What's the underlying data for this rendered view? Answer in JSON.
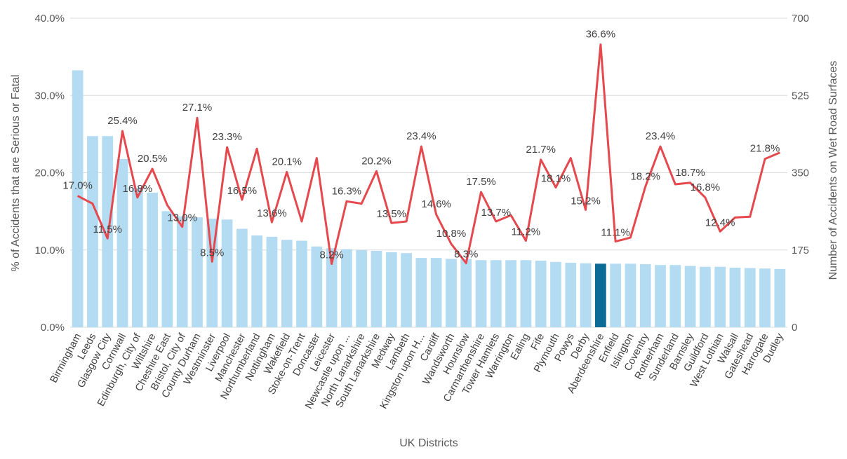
{
  "chart_data": {
    "type": "bar+line",
    "xlabel": "UK Districts",
    "ylabel_left": "% of Accidents that are Serious or Fatal",
    "ylabel_right": "Number of Accidents on Wet Road Surfaces",
    "y_left_range": [
      0,
      40
    ],
    "y_left_ticks": [
      "0.0%",
      "10.0%",
      "20.0%",
      "30.0%",
      "40.0%"
    ],
    "y_right_range": [
      0,
      700
    ],
    "y_right_ticks": [
      "0",
      "175",
      "350",
      "525",
      "700"
    ],
    "grid": true,
    "colors": {
      "bar": "#b3dcf3",
      "bar_highlight": "#0b6a96",
      "line": "#e5484d",
      "grid": "#d9d9d9"
    },
    "highlight_category": "Aberdeenshire",
    "categories": [
      "Birmingham",
      "Leeds",
      "Glasgow City",
      "Cornwall",
      "Edinburgh, City of",
      "Wiltshire",
      "Cheshire East",
      "Bristol, City of",
      "County Durham",
      "Westminster",
      "Liverpool",
      "Manchester",
      "Northumberland",
      "Nottingham",
      "Wakefield",
      "Stoke-on-Trent",
      "Doncaster",
      "Leicester",
      "Newcastle upon ...",
      "North Lanarkshire",
      "South Lanarkshire",
      "Medway",
      "Lambeth",
      "Kingston upon H...",
      "Cardiff",
      "Wandsworth",
      "Hounslow",
      "Carmarthenshire",
      "Tower Hamlets",
      "Warrington",
      "Ealing",
      "Fife",
      "Plymouth",
      "Powys",
      "Derby",
      "Aberdeenshire",
      "Enfield",
      "Islington",
      "Coventry",
      "Rotherham",
      "Sunderland",
      "Barnsley",
      "Guildford",
      "West Lothian",
      "Walsall",
      "Gateshead",
      "Harrogate",
      "Dudley"
    ],
    "series": [
      {
        "name": "Number of Accidents on Wet Road Surfaces",
        "type": "bar",
        "axis": "right",
        "values": [
          582,
          433,
          433,
          381,
          316,
          305,
          263,
          251,
          249,
          246,
          244,
          223,
          208,
          205,
          198,
          196,
          183,
          179,
          177,
          175,
          173,
          170,
          168,
          157,
          157,
          155,
          155,
          152,
          152,
          152,
          152,
          151,
          148,
          146,
          145,
          144,
          144,
          144,
          143,
          141,
          141,
          139,
          137,
          137,
          135,
          134,
          133,
          132
        ]
      },
      {
        "name": "% of Accidents that are Serious or Fatal",
        "type": "line",
        "axis": "left",
        "values": [
          17.0,
          16.0,
          11.5,
          25.4,
          16.8,
          20.5,
          15.8,
          13.0,
          27.1,
          8.5,
          23.3,
          16.5,
          23.1,
          13.6,
          20.1,
          13.7,
          21.9,
          8.2,
          16.3,
          16.0,
          20.2,
          13.5,
          13.7,
          23.4,
          14.6,
          10.8,
          8.3,
          17.5,
          13.7,
          14.5,
          11.2,
          21.7,
          18.1,
          21.9,
          15.2,
          36.6,
          11.1,
          11.6,
          18.2,
          23.4,
          18.5,
          18.7,
          16.8,
          12.4,
          14.2,
          14.3,
          21.8,
          22.6
        ],
        "labels": [
          "17.0%",
          "",
          "11.5%",
          "25.4%",
          "16.8%",
          "20.5%",
          "",
          "13.0%",
          "27.1%",
          "8.5%",
          "23.3%",
          "16.5%",
          "",
          "13.6%",
          "20.1%",
          "",
          "",
          "8.2%",
          "16.3%",
          "",
          "20.2%",
          "13.5%",
          "",
          "23.4%",
          "14.6%",
          "10.8%",
          "8.3%",
          "17.5%",
          "13.7%",
          "",
          "11.2%",
          "21.7%",
          "18.1%",
          "",
          "15.2%",
          "36.6%",
          "11.1%",
          "",
          "18.2%",
          "23.4%",
          "",
          "18.7%",
          "16.8%",
          "12.4%",
          "",
          "",
          "21.8%",
          ""
        ]
      }
    ]
  }
}
